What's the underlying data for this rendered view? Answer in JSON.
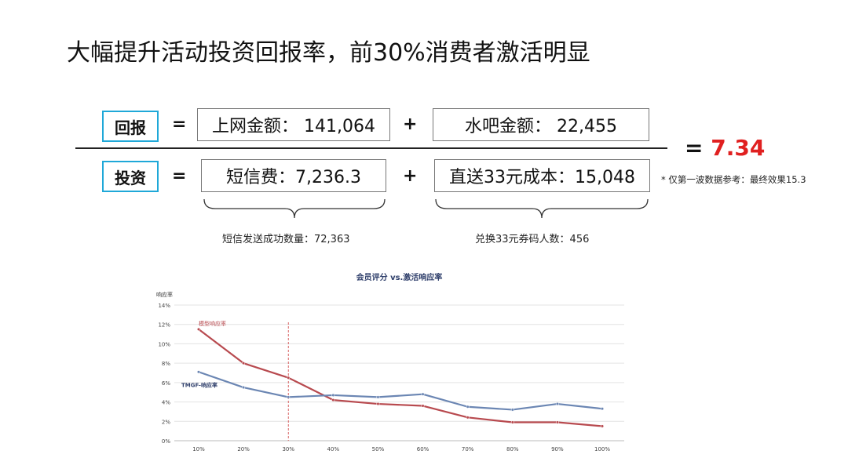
{
  "title": "大幅提升活动投资回报率，前30%消费者激活明显",
  "formula": {
    "return_label": "回报",
    "invest_label": "投资",
    "equals": "=",
    "plus": "+",
    "return_terms": [
      "上网金额： 141,064",
      "水吧金额： 22,455"
    ],
    "invest_terms": [
      "短信费：7,236.3",
      "直送33元成本：15,048"
    ],
    "result_prefix": "=",
    "result_value": "7.34",
    "result_note": "* 仅第一波数据参考：最终效果15.3",
    "captions": [
      "短信发送成功数量：72,363",
      "兑换33元券码人数：456"
    ]
  },
  "colors": {
    "accent_box": "#1fa8d8",
    "result": "#e02020",
    "model_series": "#b84a4f",
    "tmgf_series": "#6b86b3",
    "marker_line": "#d04040"
  },
  "chart_data": {
    "type": "line",
    "title": "会员评分 vs.激活响应率",
    "ylabel": "响应率",
    "xlabel": "",
    "categories": [
      "10%",
      "20%",
      "30%",
      "40%",
      "50%",
      "60%",
      "70%",
      "80%",
      "90%",
      "100%"
    ],
    "ylim": [
      0,
      14
    ],
    "yticks": [
      "0%",
      "2%",
      "4%",
      "6%",
      "8%",
      "10%",
      "12%",
      "14%"
    ],
    "grid": true,
    "reference_line": "30%",
    "series": [
      {
        "name": "模型响应率",
        "values": [
          11.5,
          8.0,
          6.5,
          4.2,
          3.8,
          3.6,
          2.4,
          1.9,
          1.9,
          1.5
        ]
      },
      {
        "name": "TMGF-响应率",
        "values": [
          7.1,
          5.5,
          4.5,
          4.7,
          4.5,
          4.8,
          3.5,
          3.2,
          3.8,
          3.3
        ]
      }
    ]
  }
}
